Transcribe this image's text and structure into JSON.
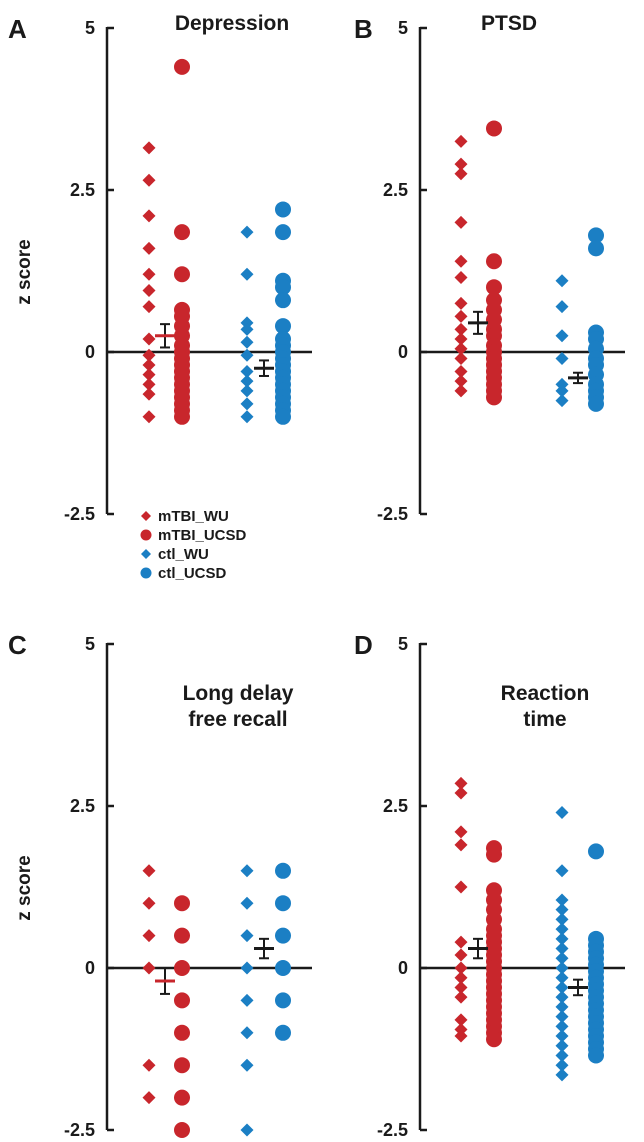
{
  "figure": {
    "legend": [
      {
        "label": "mTBI_WU",
        "marker": "diamond",
        "color": "#c8262c"
      },
      {
        "label": "mTBI_UCSD",
        "marker": "circle",
        "color": "#c8262c"
      },
      {
        "label": "ctl_WU",
        "marker": "diamond",
        "color": "#1b7fc4"
      },
      {
        "label": "ctl_UCSD",
        "marker": "circle",
        "color": "#1b7fc4"
      }
    ]
  },
  "chart_data": [
    {
      "panel": "A",
      "type": "scatter",
      "title": [
        "Depression"
      ],
      "ylabel": "z score",
      "ylim": [
        -2.5,
        5
      ],
      "yticks": [
        5,
        2.5,
        0,
        -2.5
      ],
      "ytick_labels": [
        "5",
        "2.5",
        "0",
        "-2.5"
      ],
      "series": [
        {
          "name": "mTBI_WU",
          "values": [
            3.15,
            2.65,
            2.1,
            1.6,
            1.2,
            0.95,
            0.7,
            0.2,
            -0.05,
            -0.2,
            -0.35,
            -0.5,
            -0.65,
            -1.0
          ]
        },
        {
          "name": "mTBI_UCSD",
          "values": [
            4.4,
            1.85,
            1.2,
            0.65,
            0.55,
            0.4,
            0.25,
            0.1,
            0.0,
            -0.1,
            -0.2,
            -0.3,
            -0.4,
            -0.5,
            -0.6,
            -0.7,
            -0.8,
            -0.9,
            -1.0
          ]
        },
        {
          "name": "ctl_WU",
          "values": [
            1.85,
            1.2,
            0.45,
            0.35,
            0.15,
            -0.05,
            -0.3,
            -0.45,
            -0.6,
            -0.8,
            -1.0
          ]
        },
        {
          "name": "ctl_UCSD",
          "values": [
            2.2,
            1.85,
            1.1,
            1.0,
            0.8,
            0.4,
            0.2,
            0.1,
            0.0,
            -0.1,
            -0.2,
            -0.3,
            -0.4,
            -0.5,
            -0.6,
            -0.7,
            -0.8,
            -0.9,
            -1.0
          ]
        }
      ],
      "group_means": [
        {
          "name": "mTBI",
          "mean": 0.25,
          "sem": 0.18,
          "color": "#c8262c"
        },
        {
          "name": "ctl",
          "mean": -0.25,
          "sem": 0.12,
          "color": "#1a1a1a"
        }
      ]
    },
    {
      "panel": "B",
      "type": "scatter",
      "title": [
        "PTSD"
      ],
      "ylabel": "",
      "ylim": [
        -2.5,
        5
      ],
      "yticks": [
        5,
        2.5,
        0,
        -2.5
      ],
      "ytick_labels": [
        "5",
        "2.5",
        "0",
        "-2.5"
      ],
      "series": [
        {
          "name": "mTBI_WU",
          "values": [
            3.25,
            2.9,
            2.75,
            2.0,
            1.4,
            1.15,
            0.75,
            0.55,
            0.35,
            0.2,
            0.05,
            -0.1,
            -0.3,
            -0.45,
            -0.6
          ]
        },
        {
          "name": "mTBI_UCSD",
          "values": [
            3.45,
            1.4,
            1.0,
            0.8,
            0.65,
            0.5,
            0.35,
            0.25,
            0.1,
            0.0,
            -0.1,
            -0.2,
            -0.3,
            -0.4,
            -0.5,
            -0.6,
            -0.7
          ]
        },
        {
          "name": "ctl_WU",
          "values": [
            1.1,
            0.7,
            0.25,
            -0.1,
            -0.5,
            -0.6,
            -0.75
          ]
        },
        {
          "name": "ctl_UCSD",
          "values": [
            1.8,
            1.6,
            0.3,
            0.2,
            0.05,
            -0.1,
            -0.2,
            -0.35,
            -0.5,
            -0.6,
            -0.7,
            -0.8
          ]
        }
      ],
      "group_means": [
        {
          "name": "mTBI",
          "mean": 0.45,
          "sem": 0.17,
          "color": "#1a1a1a"
        },
        {
          "name": "ctl",
          "mean": -0.4,
          "sem": 0.08,
          "color": "#1a1a1a"
        }
      ]
    },
    {
      "panel": "C",
      "type": "scatter",
      "title": [
        "Long delay",
        "free recall"
      ],
      "ylabel": "z score",
      "ylim": [
        -2.5,
        5
      ],
      "yticks": [
        5,
        2.5,
        0,
        -2.5
      ],
      "ytick_labels": [
        "5",
        "2.5",
        "0",
        "-2.5"
      ],
      "series": [
        {
          "name": "mTBI_WU",
          "values": [
            1.5,
            1.0,
            0.5,
            0.0,
            -1.5,
            -2.0
          ]
        },
        {
          "name": "mTBI_UCSD",
          "values": [
            1.0,
            0.5,
            0.0,
            -0.5,
            -1.0,
            -1.5,
            -2.0,
            -2.5
          ]
        },
        {
          "name": "ctl_WU",
          "values": [
            1.5,
            1.0,
            0.5,
            0.0,
            -0.5,
            -1.0,
            -1.5,
            -2.5
          ]
        },
        {
          "name": "ctl_UCSD",
          "values": [
            1.5,
            1.0,
            0.5,
            0.0,
            -0.5,
            -1.0
          ]
        }
      ],
      "group_means": [
        {
          "name": "mTBI",
          "mean": -0.2,
          "sem": 0.2,
          "color": "#c8262c"
        },
        {
          "name": "ctl",
          "mean": 0.3,
          "sem": 0.15,
          "color": "#1a1a1a"
        }
      ]
    },
    {
      "panel": "D",
      "type": "scatter",
      "title": [
        "Reaction",
        "time"
      ],
      "ylabel": "",
      "ylim": [
        -2.5,
        5
      ],
      "yticks": [
        5,
        2.5,
        0,
        -2.5
      ],
      "ytick_labels": [
        "5",
        "2.5",
        "0",
        "-2.5"
      ],
      "series": [
        {
          "name": "mTBI_WU",
          "values": [
            2.85,
            2.7,
            2.1,
            1.9,
            1.25,
            0.4,
            0.2,
            0.0,
            -0.15,
            -0.3,
            -0.45,
            -0.8,
            -0.95,
            -1.05
          ]
        },
        {
          "name": "mTBI_UCSD",
          "values": [
            1.85,
            1.75,
            1.2,
            1.05,
            0.9,
            0.75,
            0.6,
            0.5,
            0.4,
            0.3,
            0.2,
            0.1,
            0.0,
            -0.1,
            -0.2,
            -0.3,
            -0.4,
            -0.5,
            -0.6,
            -0.7,
            -0.8,
            -0.9,
            -1.0,
            -1.1
          ]
        },
        {
          "name": "ctl_WU",
          "values": [
            2.4,
            1.5,
            1.05,
            0.9,
            0.75,
            0.6,
            0.45,
            0.3,
            0.15,
            0.0,
            -0.15,
            -0.3,
            -0.45,
            -0.6,
            -0.75,
            -0.9,
            -1.05,
            -1.2,
            -1.35,
            -1.5,
            -1.65
          ]
        },
        {
          "name": "ctl_UCSD",
          "values": [
            1.8,
            0.45,
            0.35,
            0.25,
            0.15,
            0.05,
            -0.05,
            -0.15,
            -0.25,
            -0.35,
            -0.45,
            -0.55,
            -0.65,
            -0.75,
            -0.85,
            -0.95,
            -1.05,
            -1.15,
            -1.25,
            -1.35
          ]
        }
      ],
      "group_means": [
        {
          "name": "mTBI",
          "mean": 0.3,
          "sem": 0.15,
          "color": "#1a1a1a"
        },
        {
          "name": "ctl",
          "mean": -0.3,
          "sem": 0.12,
          "color": "#1a1a1a"
        }
      ]
    }
  ]
}
